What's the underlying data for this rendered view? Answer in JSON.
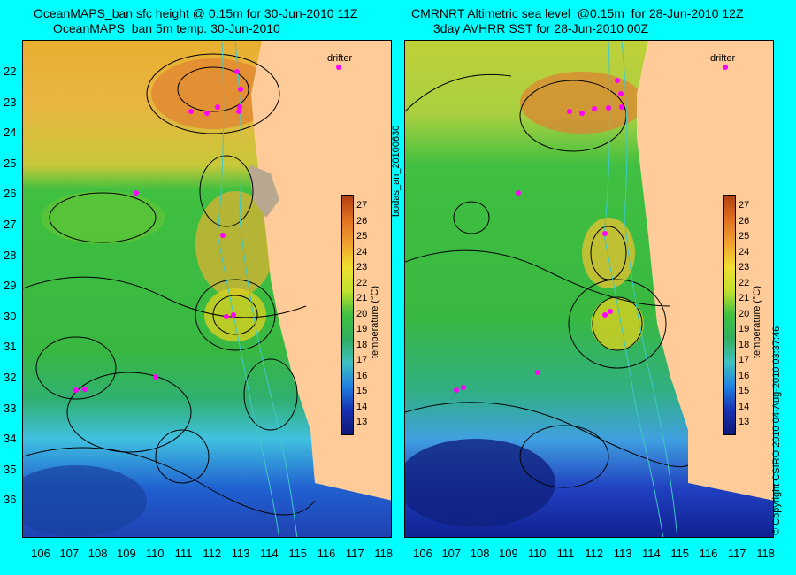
{
  "left": {
    "title_line1": "OceanMAPS_ban sfc height @ 0.15m for 30-Jun-2010 11Z",
    "title_line2": "OceanMAPS_ban 5m temp. 30-Jun-2010",
    "drifter_label": "drifter",
    "colorbar_title": "temperature (°C)"
  },
  "right": {
    "title_line1": "CMRNRT Altimetric sea level  @0.15m  for 28-Jun-2010 12Z",
    "title_line2": "3day AVHRR SST for 28-Jun-2010 00Z",
    "drifter_label": "drifter",
    "colorbar_title": "temperature (°C)"
  },
  "run_id": "bodas_an_20100630",
  "copyright": "© Copyright CSIRO 2010   04-Aug-2010 03:37:46",
  "latitudes": [
    "22",
    "23",
    "24",
    "25",
    "26",
    "27",
    "28",
    "29",
    "30",
    "31",
    "32",
    "33",
    "34",
    "35",
    "36"
  ],
  "longitudes": [
    "106",
    "107",
    "108",
    "109",
    "110",
    "111",
    "112",
    "113",
    "114",
    "115",
    "116",
    "117",
    "118"
  ],
  "colorbar_ticks": [
    "27",
    "26",
    "25",
    "24",
    "23",
    "22",
    "21",
    "20",
    "19",
    "18",
    "17",
    "16",
    "15",
    "14",
    "13"
  ],
  "colors": {
    "background": "#00ffff",
    "land": "#ffcc99",
    "drifter": "#ff00ff",
    "contour": "#000000",
    "isobath": "#40c8c8"
  }
}
